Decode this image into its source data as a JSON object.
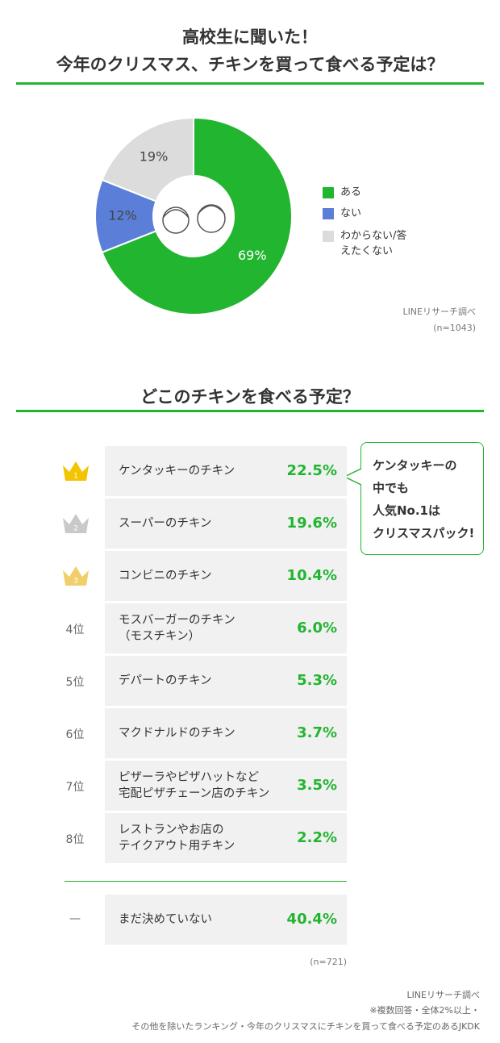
{
  "chart_data": {
    "type": "pie",
    "title": "高校生に聞いた！",
    "subtitle": "今年のクリスマス、チキンを買って食べる予定は？",
    "categories": [
      "ある",
      "ない",
      "わからない/答えたくない"
    ],
    "values": [
      69,
      12,
      19
    ],
    "value_labels": [
      "69%",
      "12%",
      "19%"
    ],
    "colors": [
      "#22b530",
      "#5b7fd8",
      "#dcdcdc"
    ],
    "source": "LINEリサーチ調べ",
    "note": "(n=1043)"
  },
  "ranking": {
    "title": "どこのチキンを食べる予定？",
    "rows": [
      {
        "rank": "1",
        "name": "ケンタッキーのチキン",
        "value": "22.5%"
      },
      {
        "rank": "2",
        "name": "スーパーのチキン",
        "value": "19.6%"
      },
      {
        "rank": "3",
        "name": "コンビニのチキン",
        "value": "10.4%"
      },
      {
        "rank": "4位",
        "name": "モスバーガーのチキン\n（モスチキン）",
        "value": "6.0%"
      },
      {
        "rank": "5位",
        "name": "デパートのチキン",
        "value": "5.3%"
      },
      {
        "rank": "6位",
        "name": "マクドナルドのチキン",
        "value": "3.7%"
      },
      {
        "rank": "7位",
        "name": "ピザーラやピザハットなど\n宅配ピザチェーン店のチキン",
        "value": "3.5%"
      },
      {
        "rank": "8位",
        "name": "レストランやお店の\nテイクアウト用チキン",
        "value": "2.2%"
      }
    ],
    "other": {
      "rank": "—",
      "name": "まだ決めていない",
      "value": "40.4%"
    },
    "callout": "ケンタッキーの\n中でも\n人気No.1は\nクリスマスパック!",
    "note": "(n=721)"
  },
  "footer": [
    "LINEリサーチ調べ",
    "※複数回答・全体2%以上・",
    "その他を除いたランキング・今年のクリスマスにチキンを買って食べる予定のあるJKDK"
  ]
}
